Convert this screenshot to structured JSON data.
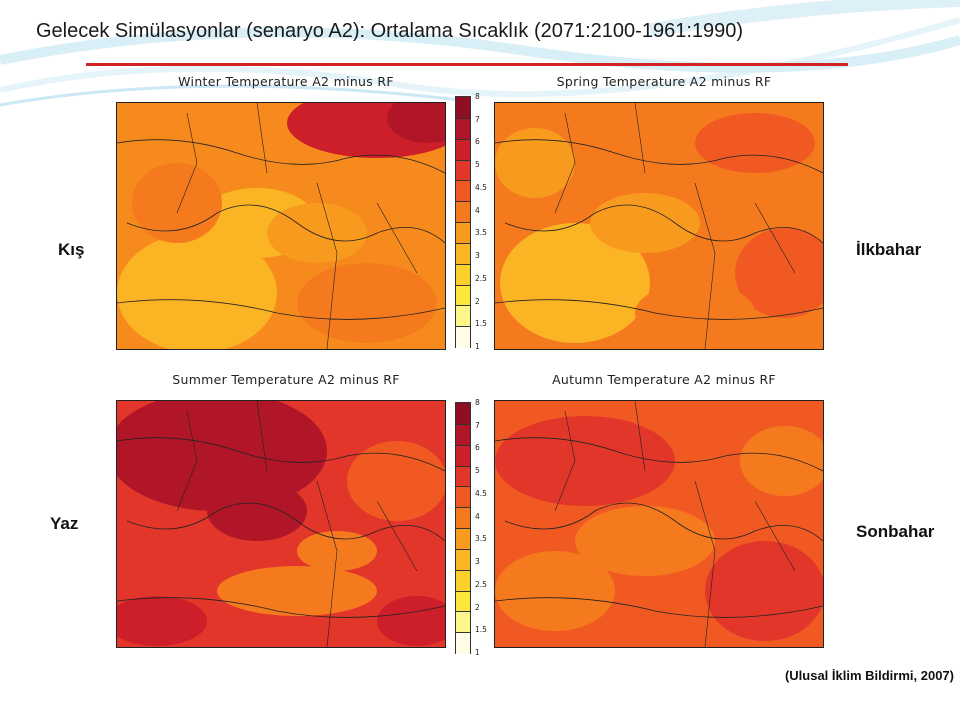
{
  "title": "Gelecek Simülasyonlar (senaryo A2): Ortalama Sıcaklık (2071:2100-1961:1990)",
  "seasons": {
    "winter": "Kış",
    "spring": "İlkbahar",
    "summer": "Yaz",
    "autumn": "Sonbahar"
  },
  "maps": [
    {
      "id": "winter",
      "title": "Winter Temperature A2 minus RF"
    },
    {
      "id": "spring",
      "title": "Spring Temperature A2 minus RF"
    },
    {
      "id": "summer",
      "title": "Summer Temperature A2 minus RF"
    },
    {
      "id": "autumn",
      "title": "Autumn Temperature A2 minus RF"
    }
  ],
  "legend": {
    "ticks": [
      "8",
      "7",
      "6",
      "5",
      "4.5",
      "4",
      "3.5",
      "3",
      "2.5",
      "2",
      "1.5",
      "1"
    ],
    "colors": [
      "#8e0f24",
      "#b01628",
      "#cc1f2a",
      "#e2362a",
      "#f05a22",
      "#f57a1e",
      "#f89a1d",
      "#fbb524",
      "#fcd02c",
      "#fde73c",
      "#fdf78a",
      "#fffde6"
    ]
  },
  "credit": "(Ulusal İklim Bildirmi, 2007)"
}
